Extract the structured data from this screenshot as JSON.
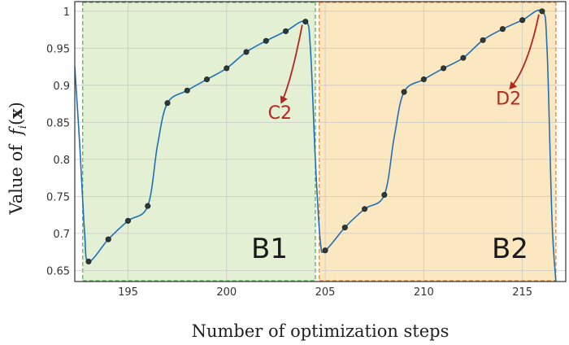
{
  "chart_data": {
    "type": "line",
    "xlabel": "Number of optimization steps",
    "ylabel": "Value of",
    "ylabel_math": "f_i(x)",
    "xlim": [
      192.3,
      217.2
    ],
    "ylim": [
      0.635,
      1.013
    ],
    "xticks": [
      195,
      200,
      205,
      210,
      215
    ],
    "yticks": [
      0.65,
      0.7,
      0.75,
      0.8,
      0.85,
      0.9,
      0.95,
      1
    ],
    "ytick_labels": [
      "0.65",
      "0.7",
      "0.75",
      "0.8",
      "0.85",
      "0.9",
      "0.95",
      "1"
    ],
    "grid": true,
    "line_color": "#1f6fb8",
    "marker_color": "#2e3a3a",
    "regions": [
      {
        "label": "B1",
        "x_start": 192.7,
        "x_end": 204.5,
        "fill": "#e3f0d4",
        "edge": "#4caf50"
      },
      {
        "label": "B2",
        "x_start": 204.7,
        "x_end": 216.7,
        "fill": "#fce8c0",
        "edge": "#e57c2a"
      }
    ],
    "series": [
      {
        "name": "",
        "curve_points": [
          {
            "x": 192.3,
            "y": 0.925
          },
          {
            "x": 192.55,
            "y": 0.82
          },
          {
            "x": 192.8,
            "y": 0.7
          },
          {
            "x": 193.0,
            "y": 0.662
          },
          {
            "x": 194.0,
            "y": 0.692
          },
          {
            "x": 195.0,
            "y": 0.717
          },
          {
            "x": 196.0,
            "y": 0.737
          },
          {
            "x": 196.5,
            "y": 0.82
          },
          {
            "x": 197.0,
            "y": 0.876
          },
          {
            "x": 198.0,
            "y": 0.893
          },
          {
            "x": 199.0,
            "y": 0.908
          },
          {
            "x": 200.0,
            "y": 0.923
          },
          {
            "x": 201.0,
            "y": 0.945
          },
          {
            "x": 202.0,
            "y": 0.96
          },
          {
            "x": 203.0,
            "y": 0.973
          },
          {
            "x": 204.0,
            "y": 0.986
          },
          {
            "x": 204.25,
            "y": 0.95
          },
          {
            "x": 204.5,
            "y": 0.8
          },
          {
            "x": 204.75,
            "y": 0.69
          },
          {
            "x": 205.0,
            "y": 0.677
          },
          {
            "x": 206.0,
            "y": 0.708
          },
          {
            "x": 207.0,
            "y": 0.733
          },
          {
            "x": 208.0,
            "y": 0.752
          },
          {
            "x": 208.5,
            "y": 0.83
          },
          {
            "x": 209.0,
            "y": 0.891
          },
          {
            "x": 210.0,
            "y": 0.908
          },
          {
            "x": 211.0,
            "y": 0.923
          },
          {
            "x": 212.0,
            "y": 0.937
          },
          {
            "x": 213.0,
            "y": 0.961
          },
          {
            "x": 214.0,
            "y": 0.976
          },
          {
            "x": 215.0,
            "y": 0.988
          },
          {
            "x": 216.0,
            "y": 1.0
          },
          {
            "x": 216.25,
            "y": 0.95
          },
          {
            "x": 216.5,
            "y": 0.72
          },
          {
            "x": 216.7,
            "y": 0.635
          }
        ],
        "markers": [
          {
            "x": 193,
            "y": 0.662
          },
          {
            "x": 194,
            "y": 0.692
          },
          {
            "x": 195,
            "y": 0.717
          },
          {
            "x": 196,
            "y": 0.737
          },
          {
            "x": 197,
            "y": 0.876
          },
          {
            "x": 198,
            "y": 0.893
          },
          {
            "x": 199,
            "y": 0.908
          },
          {
            "x": 200,
            "y": 0.923
          },
          {
            "x": 201,
            "y": 0.945
          },
          {
            "x": 202,
            "y": 0.96
          },
          {
            "x": 203,
            "y": 0.973
          },
          {
            "x": 204,
            "y": 0.986
          },
          {
            "x": 205,
            "y": 0.677
          },
          {
            "x": 206,
            "y": 0.708
          },
          {
            "x": 207,
            "y": 0.733
          },
          {
            "x": 208,
            "y": 0.752
          },
          {
            "x": 209,
            "y": 0.891
          },
          {
            "x": 210,
            "y": 0.908
          },
          {
            "x": 211,
            "y": 0.923
          },
          {
            "x": 212,
            "y": 0.937
          },
          {
            "x": 213,
            "y": 0.961
          },
          {
            "x": 214,
            "y": 0.976
          },
          {
            "x": 215,
            "y": 0.988
          },
          {
            "x": 216,
            "y": 1.0
          }
        ]
      }
    ],
    "annotations": [
      {
        "text": "C2",
        "color": "#b5261e",
        "target": {
          "x": 204.0,
          "y": 0.986
        },
        "text_at": {
          "x": 202.7,
          "y": 0.855
        }
      },
      {
        "text": "D2",
        "color": "#b5261e",
        "target": {
          "x": 216.0,
          "y": 1.0
        },
        "text_at": {
          "x": 214.3,
          "y": 0.874
        }
      }
    ],
    "region_label_at": [
      {
        "label": "B1",
        "x": 203.1,
        "y": 0.667
      },
      {
        "label": "B2",
        "x": 215.3,
        "y": 0.667
      }
    ]
  }
}
